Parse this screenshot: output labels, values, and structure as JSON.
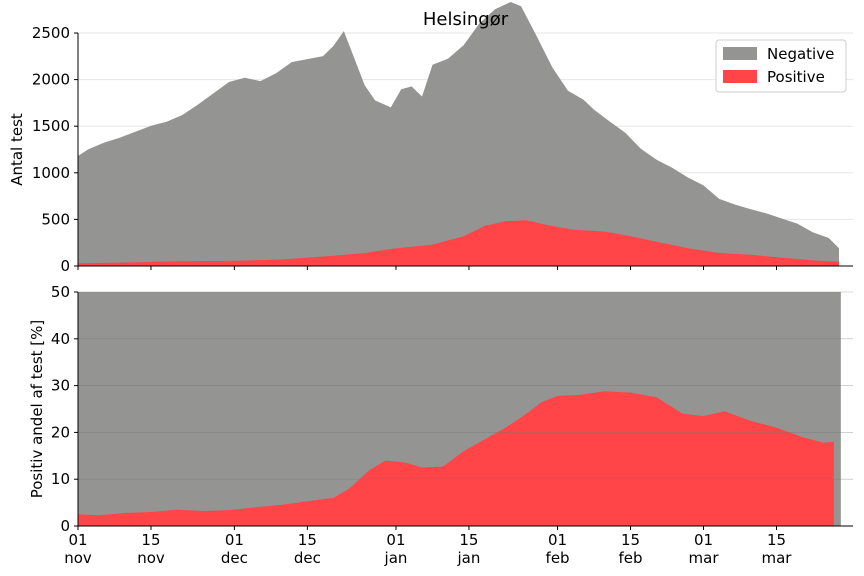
{
  "chart_data": [
    {
      "type": "area",
      "title": "Helsingør",
      "ylabel": "Antal test",
      "ylim": [
        0,
        2500
      ],
      "yticks": [
        "0",
        "500",
        "1000",
        "1500",
        "2000",
        "2500"
      ],
      "grid": true,
      "legend_position": "top-right",
      "stacked": true,
      "x_start": "2020-11-01",
      "x_end": "2021-03-27",
      "series": [
        {
          "name": "Negative",
          "color": "#949593",
          "points": [
            [
              "2020-11-01",
              1150
            ],
            [
              "2020-11-03",
              1220
            ],
            [
              "2020-11-06",
              1290
            ],
            [
              "2020-11-09",
              1340
            ],
            [
              "2020-11-12",
              1400
            ],
            [
              "2020-11-15",
              1460
            ],
            [
              "2020-11-18",
              1500
            ],
            [
              "2020-11-21",
              1570
            ],
            [
              "2020-11-24",
              1680
            ],
            [
              "2020-11-27",
              1800
            ],
            [
              "2020-11-30",
              1920
            ],
            [
              "2020-12-03",
              1960
            ],
            [
              "2020-12-06",
              1920
            ],
            [
              "2020-12-09",
              2000
            ],
            [
              "2020-12-12",
              2110
            ],
            [
              "2020-12-15",
              2130
            ],
            [
              "2020-12-18",
              2150
            ],
            [
              "2020-12-20",
              2250
            ],
            [
              "2020-12-22",
              2400
            ],
            [
              "2020-12-24",
              2100
            ],
            [
              "2020-12-26",
              1800
            ],
            [
              "2020-12-28",
              1620
            ],
            [
              "2020-12-31",
              1520
            ],
            [
              "2021-01-02",
              1700
            ],
            [
              "2021-01-04",
              1720
            ],
            [
              "2021-01-06",
              1600
            ],
            [
              "2021-01-08",
              1930
            ],
            [
              "2021-01-11",
              1950
            ],
            [
              "2021-01-14",
              2050
            ],
            [
              "2021-01-17",
              2200
            ],
            [
              "2021-01-20",
              2300
            ],
            [
              "2021-01-23",
              2350
            ],
            [
              "2021-01-25",
              2300
            ],
            [
              "2021-01-28",
              2000
            ],
            [
              "2021-01-31",
              1700
            ],
            [
              "2021-02-03",
              1480
            ],
            [
              "2021-02-06",
              1400
            ],
            [
              "2021-02-08",
              1300
            ],
            [
              "2021-02-11",
              1190
            ],
            [
              "2021-02-14",
              1100
            ],
            [
              "2021-02-17",
              960
            ],
            [
              "2021-02-20",
              880
            ],
            [
              "2021-02-23",
              830
            ],
            [
              "2021-02-26",
              760
            ],
            [
              "2021-03-01",
              700
            ],
            [
              "2021-03-04",
              580
            ],
            [
              "2021-03-07",
              530
            ],
            [
              "2021-03-10",
              490
            ],
            [
              "2021-03-13",
              460
            ],
            [
              "2021-03-16",
              420
            ],
            [
              "2021-03-19",
              380
            ],
            [
              "2021-03-22",
              300
            ],
            [
              "2021-03-25",
              250
            ],
            [
              "2021-03-27",
              145
            ]
          ]
        },
        {
          "name": "Positive",
          "color": "#ff4547",
          "points": [
            [
              "2020-11-01",
              30
            ],
            [
              "2020-11-10",
              38
            ],
            [
              "2020-11-20",
              50
            ],
            [
              "2020-11-30",
              55
            ],
            [
              "2020-12-10",
              70
            ],
            [
              "2020-12-20",
              110
            ],
            [
              "2020-12-26",
              140
            ],
            [
              "2021-01-01",
              190
            ],
            [
              "2021-01-08",
              230
            ],
            [
              "2021-01-14",
              320
            ],
            [
              "2021-01-18",
              430
            ],
            [
              "2021-01-22",
              480
            ],
            [
              "2021-01-26",
              490
            ],
            [
              "2021-01-30",
              440
            ],
            [
              "2021-02-04",
              390
            ],
            [
              "2021-02-10",
              370
            ],
            [
              "2021-02-15",
              320
            ],
            [
              "2021-02-20",
              260
            ],
            [
              "2021-02-26",
              190
            ],
            [
              "2021-03-04",
              140
            ],
            [
              "2021-03-10",
              120
            ],
            [
              "2021-03-16",
              90
            ],
            [
              "2021-03-22",
              60
            ],
            [
              "2021-03-27",
              45
            ]
          ]
        }
      ]
    },
    {
      "type": "area",
      "ylabel": "Positiv andel af test [%]",
      "ylim": [
        0,
        50
      ],
      "yticks": [
        "0",
        "10",
        "20",
        "30",
        "40",
        "50"
      ],
      "grid": true,
      "x_start": "2020-11-01",
      "x_end": "2021-03-27",
      "xticks": [
        {
          "date": "2020-11-01",
          "day": "01",
          "month": "nov"
        },
        {
          "date": "2020-11-15",
          "day": "15",
          "month": "nov"
        },
        {
          "date": "2020-12-01",
          "day": "01",
          "month": "dec"
        },
        {
          "date": "2020-12-15",
          "day": "15",
          "month": "dec"
        },
        {
          "date": "2021-01-01",
          "day": "01",
          "month": "jan"
        },
        {
          "date": "2021-01-15",
          "day": "15",
          "month": "jan"
        },
        {
          "date": "2021-02-01",
          "day": "01",
          "month": "feb"
        },
        {
          "date": "2021-02-15",
          "day": "15",
          "month": "feb"
        },
        {
          "date": "2021-03-01",
          "day": "01",
          "month": "mar"
        },
        {
          "date": "2021-03-15",
          "day": "15",
          "month": "mar"
        }
      ],
      "background_value": 50,
      "background_color": "#949593",
      "series": [
        {
          "color": "#ff4547",
          "points": [
            [
              "2020-11-01",
              2.5
            ],
            [
              "2020-11-05",
              2.3
            ],
            [
              "2020-11-10",
              2.8
            ],
            [
              "2020-11-15",
              3.0
            ],
            [
              "2020-11-20",
              3.5
            ],
            [
              "2020-11-25",
              3.2
            ],
            [
              "2020-11-30",
              3.4
            ],
            [
              "2020-12-05",
              4.0
            ],
            [
              "2020-12-10",
              4.5
            ],
            [
              "2020-12-15",
              5.3
            ],
            [
              "2020-12-20",
              6.0
            ],
            [
              "2020-12-23",
              8.0
            ],
            [
              "2020-12-27",
              12.0
            ],
            [
              "2020-12-30",
              14.0
            ],
            [
              "2021-01-03",
              13.5
            ],
            [
              "2021-01-06",
              12.5
            ],
            [
              "2021-01-10",
              12.7
            ],
            [
              "2021-01-14",
              16.0
            ],
            [
              "2021-01-18",
              18.5
            ],
            [
              "2021-01-22",
              21.0
            ],
            [
              "2021-01-26",
              24.0
            ],
            [
              "2021-01-29",
              26.5
            ],
            [
              "2021-02-01",
              27.8
            ],
            [
              "2021-02-05",
              28.0
            ],
            [
              "2021-02-10",
              28.8
            ],
            [
              "2021-02-15",
              28.5
            ],
            [
              "2021-02-20",
              27.5
            ],
            [
              "2021-02-25",
              24.0
            ],
            [
              "2021-03-01",
              23.5
            ],
            [
              "2021-03-05",
              24.5
            ],
            [
              "2021-03-10",
              22.5
            ],
            [
              "2021-03-15",
              21.0
            ],
            [
              "2021-03-20",
              19.0
            ],
            [
              "2021-03-24",
              17.8
            ],
            [
              "2021-03-26",
              18.0
            ]
          ]
        }
      ]
    }
  ]
}
